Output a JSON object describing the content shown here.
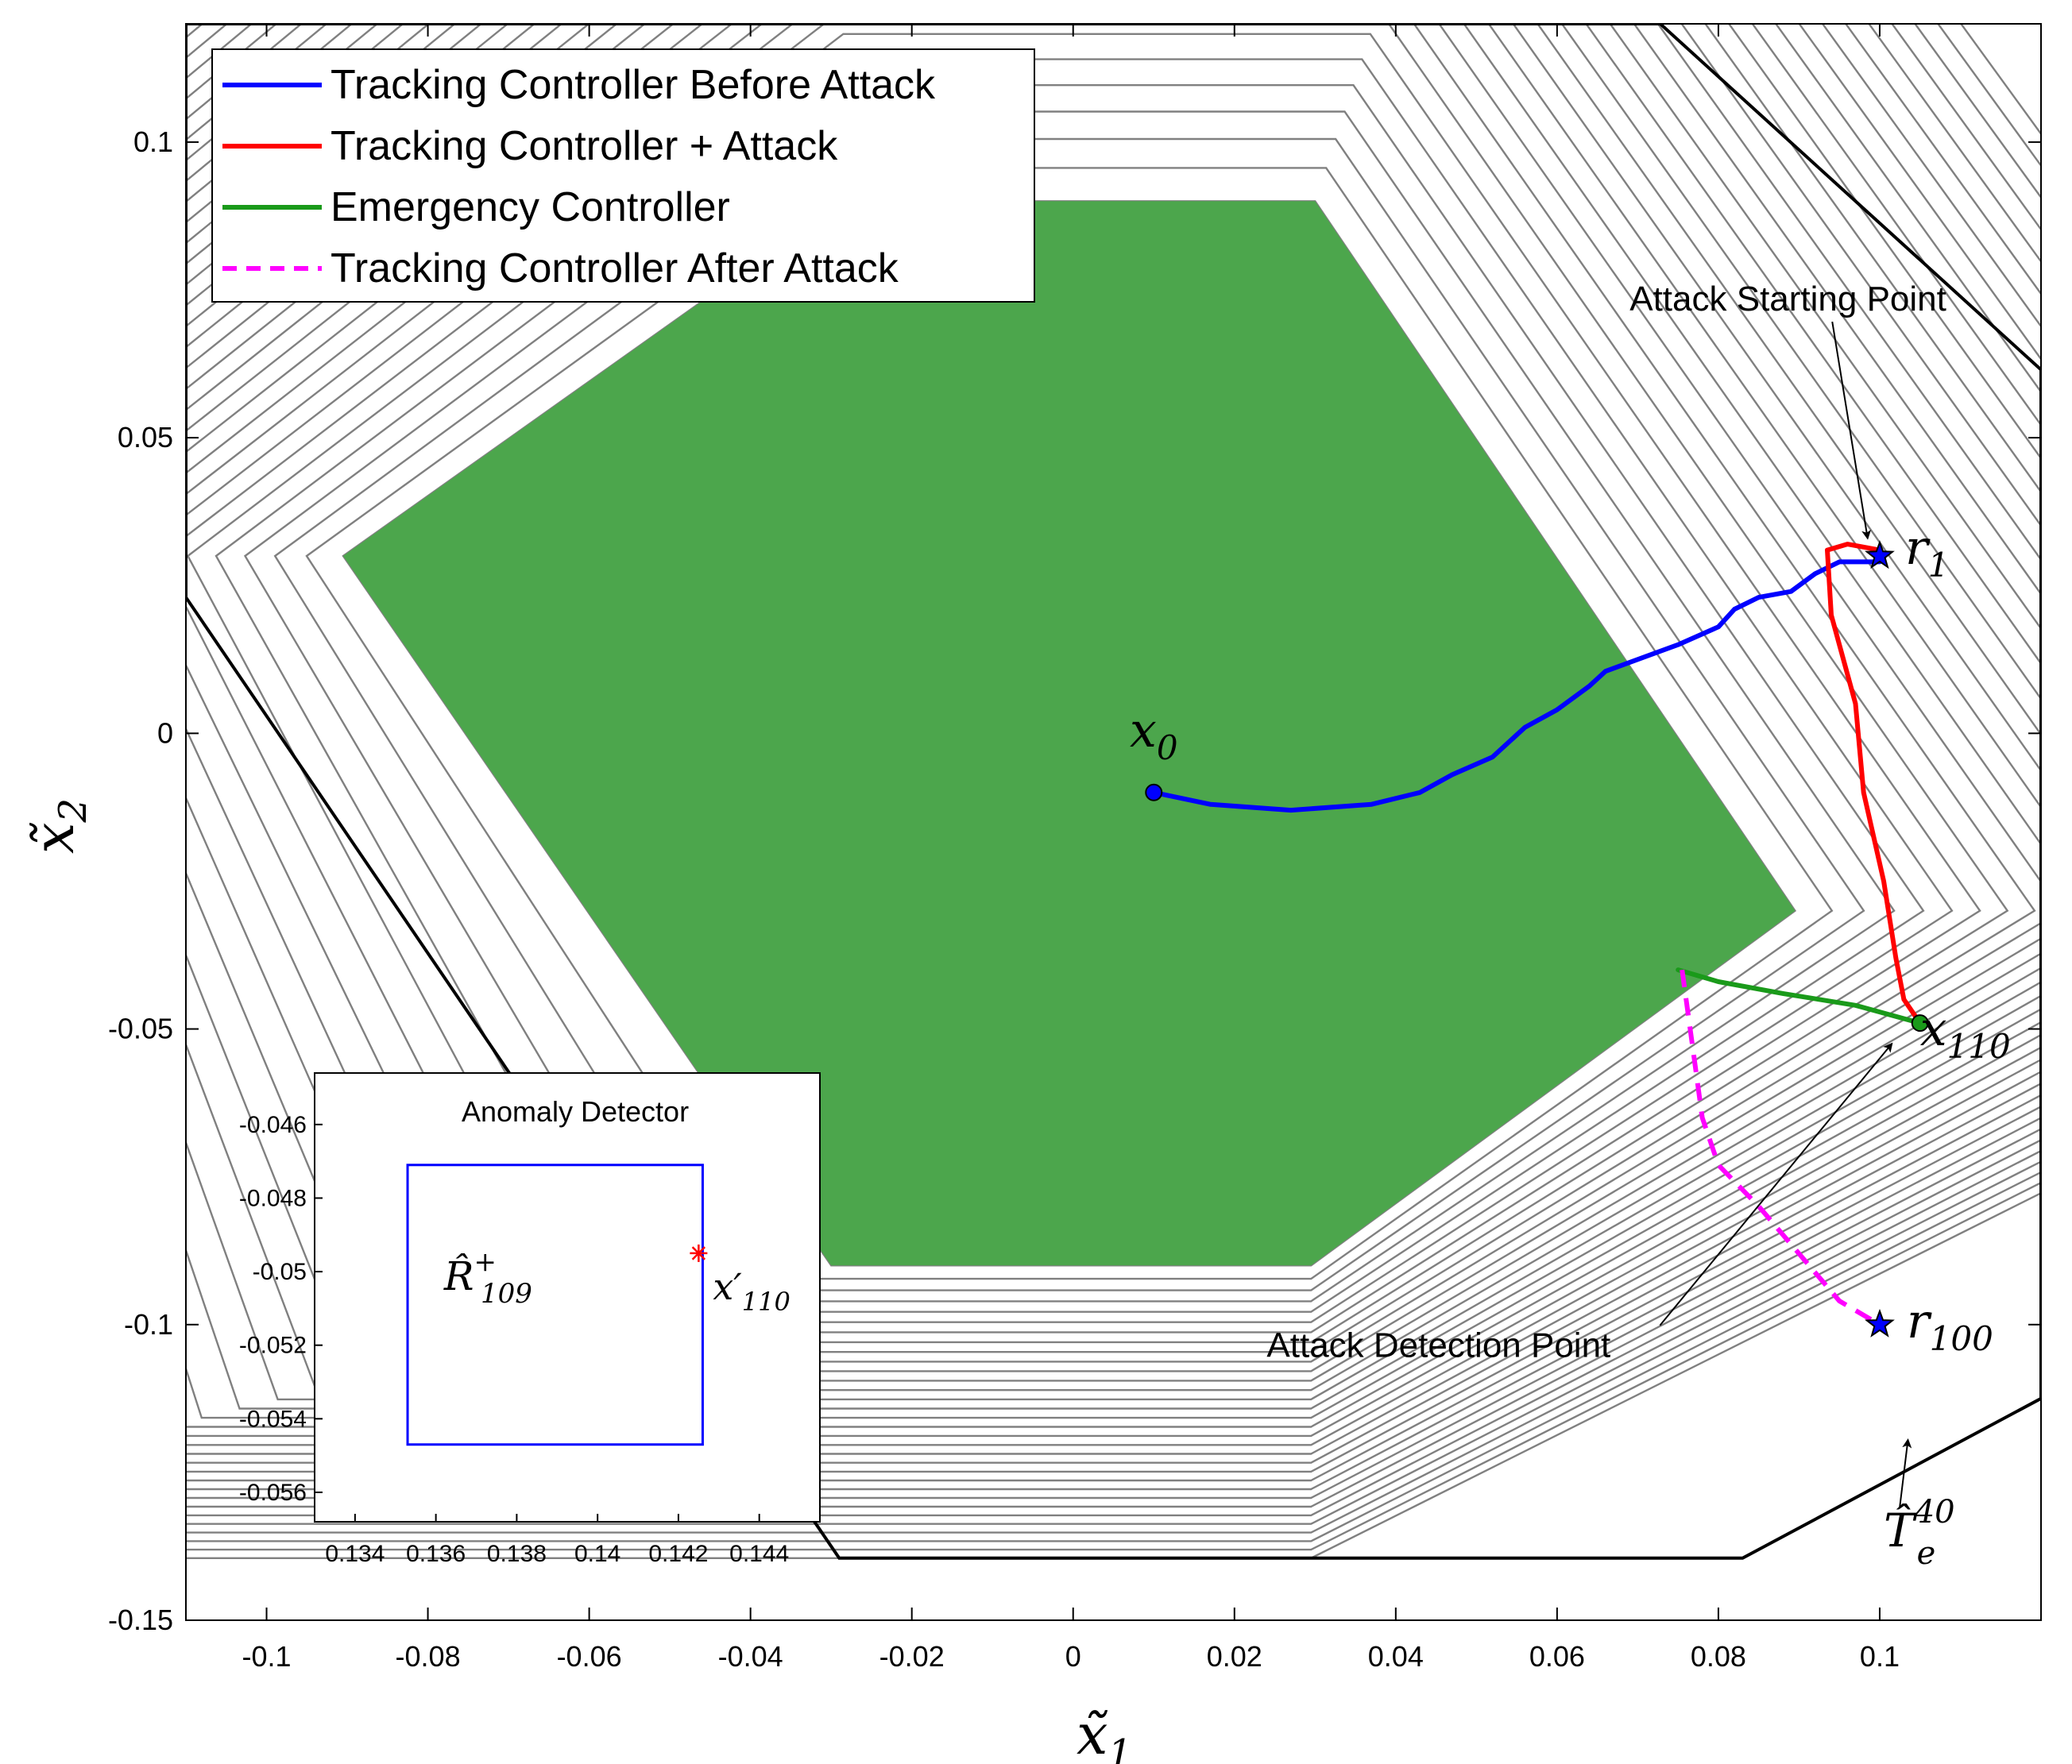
{
  "chart_data": [
    {
      "type": "line",
      "title": "",
      "xlabel": "x̃",
      "xlabel_sub": "1",
      "ylabel": "x̃",
      "ylabel_sub": "2",
      "xlim": [
        -0.11,
        0.12
      ],
      "ylim": [
        -0.15,
        0.12
      ],
      "xticks": [
        -0.1,
        -0.08,
        -0.06,
        -0.04,
        -0.02,
        0,
        0.02,
        0.04,
        0.06,
        0.08,
        0.1
      ],
      "xtick_labels": [
        "-0.1",
        "-0.08",
        "-0.06",
        "-0.04",
        "-0.02",
        "0",
        "0.02",
        "0.04",
        "0.06",
        "0.08",
        "0.1"
      ],
      "yticks": [
        -0.15,
        -0.1,
        -0.05,
        0,
        0.05,
        0.1
      ],
      "ytick_labels": [
        "-0.15",
        "-0.1",
        "-0.05",
        "0",
        "0.05",
        "0.1"
      ],
      "grid": false,
      "legend_position": "top-left",
      "regions": {
        "green_set": {
          "color": "#4ca64c",
          "polygon": [
            [
              -0.0905,
              0.03
            ],
            [
              -0.0285,
              0.09
            ],
            [
              0.03,
              0.09
            ],
            [
              0.0895,
              -0.03
            ],
            [
              0.0295,
              -0.09
            ],
            [
              -0.03,
              -0.09
            ]
          ]
        },
        "contour_color": "#808080",
        "outer_set_color": "#000000",
        "outer_set_polygon": [
          [
            -0.11,
            0.023
          ],
          [
            -0.029,
            -0.1395
          ],
          [
            0.083,
            -0.1395
          ],
          [
            0.12,
            -0.1125
          ],
          [
            0.12,
            0.0615
          ],
          [
            0.0728,
            0.12
          ],
          [
            -0.11,
            0.12
          ]
        ]
      },
      "series": [
        {
          "name": "Tracking Controller Before Attack",
          "color": "#0000ff",
          "dash": "solid",
          "x": [
            0.01,
            0.017,
            0.027,
            0.037,
            0.043,
            0.047,
            0.052,
            0.056,
            0.06,
            0.064,
            0.066,
            0.071,
            0.075,
            0.08,
            0.082,
            0.085,
            0.089,
            0.092,
            0.095,
            0.1
          ],
          "y": [
            -0.01,
            -0.012,
            -0.013,
            -0.012,
            -0.01,
            -0.007,
            -0.004,
            0.001,
            0.004,
            0.008,
            0.0105,
            0.013,
            0.015,
            0.018,
            0.021,
            0.023,
            0.024,
            0.027,
            0.029,
            0.029
          ]
        },
        {
          "name": "Tracking Controller + Attack",
          "color": "#ff0000",
          "dash": "solid",
          "x": [
            0.1,
            0.096,
            0.0935,
            0.094,
            0.097,
            0.098,
            0.1005,
            0.102,
            0.103,
            0.105
          ],
          "y": [
            0.031,
            0.032,
            0.031,
            0.02,
            0.005,
            -0.01,
            -0.025,
            -0.038,
            -0.045,
            -0.049
          ]
        },
        {
          "name": "Emergency Controller",
          "color": "#1a9a1a",
          "dash": "solid",
          "x": [
            0.075,
            0.08,
            0.088,
            0.097,
            0.105
          ],
          "y": [
            -0.04,
            -0.042,
            -0.044,
            -0.046,
            -0.049
          ]
        },
        {
          "name": "Tracking Controller After Attack",
          "color": "#ff00ff",
          "dash": "dashed",
          "x": [
            0.0755,
            0.077,
            0.078,
            0.08,
            0.085,
            0.09,
            0.095,
            0.1
          ],
          "y": [
            -0.04,
            -0.055,
            -0.065,
            -0.073,
            -0.08,
            -0.088,
            -0.096,
            -0.1
          ]
        }
      ],
      "markers": [
        {
          "label": "x",
          "sub": "0",
          "x": 0.01,
          "y": -0.01,
          "shape": "circle",
          "color": "#0000ff"
        },
        {
          "label": "r",
          "sub": "1",
          "x": 0.1,
          "y": 0.03,
          "shape": "star",
          "color": "#0000ff"
        },
        {
          "label": "x",
          "sub": "110",
          "x": 0.105,
          "y": -0.049,
          "shape": "circle",
          "color": "#1a9a1a"
        },
        {
          "label": "r",
          "sub": "100",
          "x": 0.1,
          "y": -0.1,
          "shape": "star",
          "color": "#0000ff"
        }
      ],
      "annotations": [
        {
          "text": "Attack Starting Point",
          "tx": 0.069,
          "ty": 0.0715,
          "ax": 0.0985,
          "ay": 0.033
        },
        {
          "text": "Attack Detection Point",
          "tx": 0.024,
          "ty": -0.1055,
          "ax": 0.1015,
          "ay": -0.0525
        },
        {
          "text": "T̂",
          "sup": "40",
          "sub": "e",
          "tx": 0.1005,
          "ty": -0.1375,
          "ax": 0.1035,
          "ay": -0.1195
        }
      ]
    },
    {
      "type": "line",
      "title": "Anomaly Detector",
      "xlim": [
        0.133,
        0.1455
      ],
      "ylim": [
        -0.0568,
        -0.0446
      ],
      "xticks": [
        0.134,
        0.136,
        0.138,
        0.14,
        0.142,
        0.144
      ],
      "xtick_labels": [
        "0.134",
        "0.136",
        "0.138",
        "0.14",
        "0.142",
        "0.144"
      ],
      "yticks": [
        -0.046,
        -0.048,
        -0.05,
        -0.052,
        -0.054,
        -0.056
      ],
      "ytick_labels": [
        "-0.046",
        "-0.048",
        "-0.05",
        "-0.052",
        "-0.054",
        "-0.056"
      ],
      "grid": false,
      "box": {
        "color": "#0000ff",
        "x": [
          0.1353,
          0.1426
        ],
        "y": [
          -0.0547,
          -0.0471
        ]
      },
      "box_label": {
        "text": "R̂",
        "sup": "+",
        "sub": "109",
        "x": 0.1362,
        "y": -0.0505
      },
      "point": {
        "x": 0.1425,
        "y": -0.0495,
        "color": "#ff0000",
        "shape": "asterisk",
        "label": "x′",
        "sub": "110"
      }
    }
  ]
}
